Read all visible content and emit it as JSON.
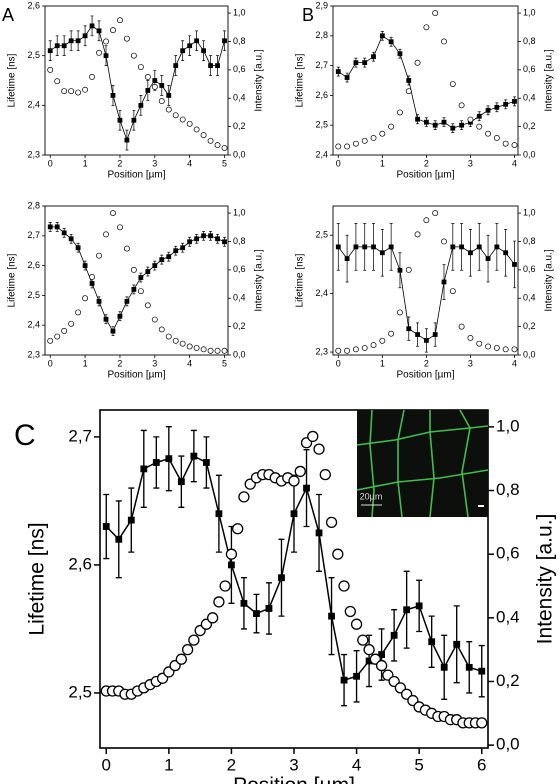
{
  "chart_data": [
    {
      "type": "line",
      "label": "A",
      "xlabel": "Position [µm]",
      "ylabel": "Lifetime [ns]",
      "y2label": "Intensity [a.u.]",
      "xlim": [
        -0.15,
        5.1
      ],
      "xticks": [
        0,
        1,
        2,
        3,
        4,
        5
      ],
      "ylim": [
        2.3,
        2.6
      ],
      "yticks": [
        {
          "value": 2.3,
          "label": "2,3"
        },
        {
          "value": 2.4,
          "label": "2,4"
        },
        {
          "value": 2.5,
          "label": "2,5"
        },
        {
          "value": 2.6,
          "label": "2,6"
        }
      ],
      "y2lim": [
        0,
        1.05
      ],
      "y2ticks": [
        {
          "value": 0,
          "label": "0,0"
        },
        {
          "value": 0.2,
          "label": "0,2"
        },
        {
          "value": 0.4,
          "label": "0,4"
        },
        {
          "value": 0.6,
          "label": "0,6"
        },
        {
          "value": 0.8,
          "label": "0,8"
        },
        {
          "value": 1.0,
          "label": "1,0"
        }
      ],
      "series": [
        {
          "color": "#000000",
          "marker": "square",
          "x": [
            0,
            0.2,
            0.4,
            0.6,
            0.8,
            1,
            1.2,
            1.4,
            1.6,
            1.8,
            2,
            2.2,
            2.4,
            2.6,
            2.8,
            3,
            3.2,
            3.4,
            3.6,
            3.8,
            4,
            4.2,
            4.4,
            4.6,
            4.8,
            5
          ],
          "values": [
            2.51,
            2.52,
            2.52,
            2.53,
            2.53,
            2.54,
            2.56,
            2.55,
            2.5,
            2.42,
            2.37,
            2.33,
            2.37,
            2.4,
            2.43,
            2.45,
            2.44,
            2.42,
            2.48,
            2.51,
            2.52,
            2.53,
            2.51,
            2.48,
            2.48,
            2.53
          ],
          "errors": [
            0.02,
            0.02,
            0.02,
            0.02,
            0.02,
            0.02,
            0.02,
            0.02,
            0.02,
            0.02,
            0.02,
            0.02,
            0.02,
            0.02,
            0.02,
            0.02,
            0.02,
            0.02,
            0.02,
            0.02,
            0.02,
            0.02,
            0.02,
            0.02,
            0.02,
            0.02
          ]
        },
        {
          "color": "#000000",
          "marker": "circle",
          "axis": "y2",
          "x": [
            0,
            0.2,
            0.4,
            0.6,
            0.8,
            1,
            1.2,
            1.4,
            1.6,
            1.8,
            2,
            2.2,
            2.4,
            2.6,
            2.8,
            3,
            3.2,
            3.4,
            3.6,
            3.8,
            4,
            4.2,
            4.4,
            4.6,
            4.8,
            5
          ],
          "values": [
            0.6,
            0.52,
            0.45,
            0.45,
            0.44,
            0.46,
            0.55,
            0.72,
            0.8,
            0.88,
            0.95,
            0.82,
            0.7,
            0.62,
            0.55,
            0.48,
            0.38,
            0.32,
            0.28,
            0.25,
            0.22,
            0.18,
            0.14,
            0.1,
            0.07,
            0.05
          ]
        }
      ]
    },
    {
      "type": "line",
      "xlabel": "Position [µm]",
      "ylabel": "Lifetime [ns]",
      "y2label": "Intensity [a.u.]",
      "xlim": [
        -0.15,
        5.1
      ],
      "xticks": [
        0,
        1,
        2,
        3,
        4,
        5
      ],
      "ylim": [
        2.3,
        2.8
      ],
      "yticks": [
        {
          "value": 2.3,
          "label": "2,3"
        },
        {
          "value": 2.4,
          "label": "2,4"
        },
        {
          "value": 2.5,
          "label": "2,5"
        },
        {
          "value": 2.6,
          "label": "2,6"
        },
        {
          "value": 2.7,
          "label": "2,7"
        },
        {
          "value": 2.8,
          "label": "2,8"
        }
      ],
      "y2lim": [
        0,
        1.05
      ],
      "y2ticks": [
        {
          "value": 0,
          "label": "0,0"
        },
        {
          "value": 0.2,
          "label": "0,2"
        },
        {
          "value": 0.4,
          "label": "0,4"
        },
        {
          "value": 0.6,
          "label": "0,6"
        },
        {
          "value": 0.8,
          "label": "0,8"
        },
        {
          "value": 1.0,
          "label": "1,0"
        }
      ],
      "series": [
        {
          "color": "#000000",
          "marker": "square",
          "x": [
            0,
            0.2,
            0.4,
            0.6,
            0.8,
            1,
            1.2,
            1.4,
            1.6,
            1.8,
            2,
            2.2,
            2.4,
            2.6,
            2.8,
            3,
            3.2,
            3.4,
            3.6,
            3.8,
            4,
            4.2,
            4.4,
            4.6,
            4.8,
            5
          ],
          "values": [
            2.73,
            2.73,
            2.71,
            2.69,
            2.66,
            2.6,
            2.54,
            2.48,
            2.42,
            2.38,
            2.43,
            2.48,
            2.52,
            2.56,
            2.58,
            2.6,
            2.62,
            2.63,
            2.65,
            2.66,
            2.68,
            2.69,
            2.7,
            2.7,
            2.69,
            2.68
          ],
          "errors": [
            0.015,
            0.015,
            0.015,
            0.015,
            0.015,
            0.015,
            0.015,
            0.015,
            0.015,
            0.015,
            0.015,
            0.015,
            0.015,
            0.015,
            0.015,
            0.015,
            0.015,
            0.015,
            0.015,
            0.015,
            0.015,
            0.015,
            0.015,
            0.015,
            0.015,
            0.015
          ]
        },
        {
          "color": "#000000",
          "marker": "circle",
          "axis": "y2",
          "x": [
            0,
            0.2,
            0.4,
            0.6,
            0.8,
            1,
            1.2,
            1.4,
            1.6,
            1.8,
            2,
            2.2,
            2.4,
            2.6,
            2.8,
            3,
            3.2,
            3.4,
            3.6,
            3.8,
            4,
            4.2,
            4.4,
            4.6,
            4.8,
            5
          ],
          "values": [
            0.1,
            0.13,
            0.17,
            0.22,
            0.3,
            0.4,
            0.55,
            0.7,
            0.85,
            1.0,
            0.9,
            0.75,
            0.6,
            0.45,
            0.35,
            0.25,
            0.18,
            0.13,
            0.1,
            0.08,
            0.06,
            0.05,
            0.04,
            0.03,
            0.03,
            0.03
          ]
        }
      ]
    },
    {
      "type": "line",
      "label": "B",
      "xlabel": "Position [µm]",
      "ylabel": "Lifetime [ns]",
      "y2label": "Intensity [a.u.]",
      "xlim": [
        -0.12,
        4.08
      ],
      "xticks": [
        0,
        1,
        2,
        3,
        4
      ],
      "ylim": [
        2.4,
        2.9
      ],
      "yticks": [
        {
          "value": 2.4,
          "label": "2,4"
        },
        {
          "value": 2.5,
          "label": "2,5"
        },
        {
          "value": 2.6,
          "label": "2,6"
        },
        {
          "value": 2.7,
          "label": "2,7"
        },
        {
          "value": 2.8,
          "label": "2,8"
        },
        {
          "value": 2.9,
          "label": "2,9"
        }
      ],
      "y2lim": [
        0,
        1.05
      ],
      "y2ticks": [
        {
          "value": 0,
          "label": "0,0"
        },
        {
          "value": 0.2,
          "label": "0,2"
        },
        {
          "value": 0.4,
          "label": "0,4"
        },
        {
          "value": 0.6,
          "label": "0,6"
        },
        {
          "value": 0.8,
          "label": "0,8"
        },
        {
          "value": 1.0,
          "label": "1,0"
        }
      ],
      "series": [
        {
          "color": "#000000",
          "marker": "square",
          "x": [
            0,
            0.2,
            0.4,
            0.6,
            0.8,
            1,
            1.2,
            1.4,
            1.6,
            1.8,
            2,
            2.2,
            2.4,
            2.6,
            2.8,
            3,
            3.2,
            3.4,
            3.6,
            3.8,
            4
          ],
          "values": [
            2.68,
            2.66,
            2.71,
            2.71,
            2.73,
            2.8,
            2.78,
            2.74,
            2.65,
            2.52,
            2.51,
            2.5,
            2.51,
            2.49,
            2.5,
            2.51,
            2.53,
            2.55,
            2.56,
            2.57,
            2.58
          ],
          "errors": [
            0.015,
            0.015,
            0.015,
            0.015,
            0.015,
            0.015,
            0.015,
            0.015,
            0.015,
            0.015,
            0.015,
            0.015,
            0.015,
            0.015,
            0.015,
            0.015,
            0.015,
            0.015,
            0.015,
            0.015,
            0.015
          ]
        },
        {
          "color": "#000000",
          "marker": "circle",
          "axis": "y2",
          "x": [
            0,
            0.2,
            0.4,
            0.6,
            0.8,
            1,
            1.2,
            1.4,
            1.6,
            1.8,
            2,
            2.2,
            2.4,
            2.6,
            2.8,
            3,
            3.2,
            3.4,
            3.6,
            3.8,
            4
          ],
          "values": [
            0.06,
            0.06,
            0.08,
            0.1,
            0.12,
            0.15,
            0.2,
            0.3,
            0.45,
            0.65,
            0.9,
            1.0,
            0.8,
            0.5,
            0.35,
            0.25,
            0.2,
            0.15,
            0.12,
            0.08,
            0.07
          ]
        }
      ]
    },
    {
      "type": "line",
      "xlabel": "Position [µm]",
      "ylabel": "Lifetime [ns]",
      "y2label": "Intensity [a.u.]",
      "xlim": [
        -0.12,
        4.08
      ],
      "xticks": [
        0,
        1,
        2,
        3,
        4
      ],
      "ylim": [
        2.295,
        2.55
      ],
      "yticks": [
        {
          "value": 2.3,
          "label": "2,3"
        },
        {
          "value": 2.4,
          "label": "2,4"
        },
        {
          "value": 2.5,
          "label": "2,5"
        }
      ],
      "y2lim": [
        0,
        1.05
      ],
      "y2ticks": [
        {
          "value": 0,
          "label": "0,0"
        },
        {
          "value": 0.2,
          "label": "0,2"
        },
        {
          "value": 0.4,
          "label": "0,4"
        },
        {
          "value": 0.6,
          "label": "0,6"
        },
        {
          "value": 0.8,
          "label": "0,8"
        },
        {
          "value": 1.0,
          "label": "1,0"
        }
      ],
      "series": [
        {
          "color": "#000000",
          "marker": "square",
          "x": [
            0,
            0.2,
            0.4,
            0.6,
            0.8,
            1,
            1.2,
            1.4,
            1.6,
            1.8,
            2,
            2.2,
            2.4,
            2.6,
            2.8,
            3,
            3.2,
            3.4,
            3.6,
            3.8,
            4
          ],
          "values": [
            2.48,
            2.46,
            2.48,
            2.48,
            2.48,
            2.47,
            2.48,
            2.44,
            2.34,
            2.33,
            2.32,
            2.33,
            2.42,
            2.48,
            2.48,
            2.47,
            2.48,
            2.46,
            2.48,
            2.47,
            2.45
          ],
          "errors": [
            0.04,
            0.04,
            0.04,
            0.04,
            0.04,
            0.04,
            0.04,
            0.03,
            0.02,
            0.02,
            0.02,
            0.02,
            0.03,
            0.04,
            0.04,
            0.04,
            0.04,
            0.04,
            0.04,
            0.04,
            0.04
          ]
        },
        {
          "color": "#000000",
          "marker": "circle",
          "axis": "y2",
          "x": [
            0,
            0.2,
            0.4,
            0.6,
            0.8,
            1,
            1.2,
            1.4,
            1.6,
            1.8,
            2,
            2.2,
            2.4,
            2.6,
            2.8,
            3,
            3.2,
            3.4,
            3.6,
            3.8,
            4
          ],
          "values": [
            0.03,
            0.03,
            0.04,
            0.05,
            0.07,
            0.1,
            0.15,
            0.3,
            0.6,
            0.85,
            0.95,
            1.0,
            0.8,
            0.45,
            0.2,
            0.12,
            0.08,
            0.06,
            0.05,
            0.04,
            0.04
          ]
        }
      ]
    },
    {
      "type": "line",
      "label": "C",
      "xlabel": "Position [µm]",
      "ylabel": "Lifetime [ns]",
      "y2label": "Intensity [a.u.]",
      "inset_label": "20µm",
      "xlim": [
        -0.1,
        6.1
      ],
      "xticks": [
        0,
        1,
        2,
        3,
        4,
        5,
        6
      ],
      "ylim": [
        2.457,
        2.721
      ],
      "yticks": [
        {
          "value": 2.5,
          "label": "2,5"
        },
        {
          "value": 2.6,
          "label": "2,6"
        },
        {
          "value": 2.7,
          "label": "2,7"
        }
      ],
      "y2lim": [
        -0.009,
        1.053
      ],
      "y2ticks": [
        {
          "value": 0,
          "label": "0,0"
        },
        {
          "value": 0.2,
          "label": "0,2"
        },
        {
          "value": 0.4,
          "label": "0,4"
        },
        {
          "value": 0.6,
          "label": "0,6"
        },
        {
          "value": 0.8,
          "label": "0,8"
        },
        {
          "value": 1.0,
          "label": "1,0"
        }
      ],
      "series": [
        {
          "color": "#000000",
          "marker": "square",
          "x": [
            0,
            0.2,
            0.4,
            0.6,
            0.8,
            1,
            1.2,
            1.4,
            1.6,
            1.8,
            2,
            2.2,
            2.4,
            2.6,
            2.8,
            3,
            3.2,
            3.4,
            3.6,
            3.8,
            4,
            4.2,
            4.4,
            4.6,
            4.8,
            5,
            5.2,
            5.4,
            5.6,
            5.8,
            6
          ],
          "values": [
            2.63,
            2.62,
            2.635,
            2.675,
            2.68,
            2.683,
            2.665,
            2.685,
            2.68,
            2.64,
            2.6,
            2.57,
            2.562,
            2.566,
            2.59,
            2.64,
            2.66,
            2.625,
            2.56,
            2.51,
            2.513,
            2.525,
            2.53,
            2.545,
            2.565,
            2.568,
            2.54,
            2.52,
            2.538,
            2.52,
            2.517
          ],
          "errors": [
            0.025,
            0.03,
            0.025,
            0.03,
            0.02,
            0.025,
            0.02,
            0.02,
            0.02,
            0.03,
            0.03,
            0.02,
            0.015,
            0.02,
            0.03,
            0.03,
            0.03,
            0.03,
            0.03,
            0.02,
            0.02,
            0.02,
            0.02,
            0.02,
            0.03,
            0.02,
            0.02,
            0.025,
            0.03,
            0.02,
            0.02
          ]
        },
        {
          "color": "#000000",
          "marker": "circle",
          "axis": "y2",
          "x": [
            0,
            0.1,
            0.2,
            0.3,
            0.4,
            0.5,
            0.6,
            0.7,
            0.8,
            0.9,
            1,
            1.1,
            1.2,
            1.3,
            1.4,
            1.5,
            1.6,
            1.7,
            1.8,
            1.9,
            2,
            2.1,
            2.2,
            2.3,
            2.4,
            2.5,
            2.6,
            2.7,
            2.8,
            2.9,
            3,
            3.1,
            3.2,
            3.3,
            3.4,
            3.5,
            3.6,
            3.7,
            3.8,
            3.9,
            4,
            4.1,
            4.2,
            4.3,
            4.4,
            4.5,
            4.6,
            4.7,
            4.8,
            4.9,
            5,
            5.1,
            5.2,
            5.3,
            5.4,
            5.5,
            5.6,
            5.7,
            5.8,
            5.9,
            6
          ],
          "values": [
            0.17,
            0.17,
            0.17,
            0.16,
            0.16,
            0.17,
            0.18,
            0.19,
            0.2,
            0.21,
            0.23,
            0.25,
            0.27,
            0.3,
            0.33,
            0.36,
            0.38,
            0.4,
            0.45,
            0.5,
            0.6,
            0.68,
            0.78,
            0.82,
            0.84,
            0.85,
            0.85,
            0.84,
            0.83,
            0.84,
            0.83,
            0.86,
            0.95,
            0.97,
            0.93,
            0.85,
            0.7,
            0.6,
            0.5,
            0.42,
            0.38,
            0.33,
            0.3,
            0.27,
            0.25,
            0.22,
            0.2,
            0.18,
            0.16,
            0.14,
            0.12,
            0.11,
            0.1,
            0.09,
            0.09,
            0.08,
            0.08,
            0.07,
            0.07,
            0.07,
            0.07
          ]
        }
      ]
    }
  ]
}
